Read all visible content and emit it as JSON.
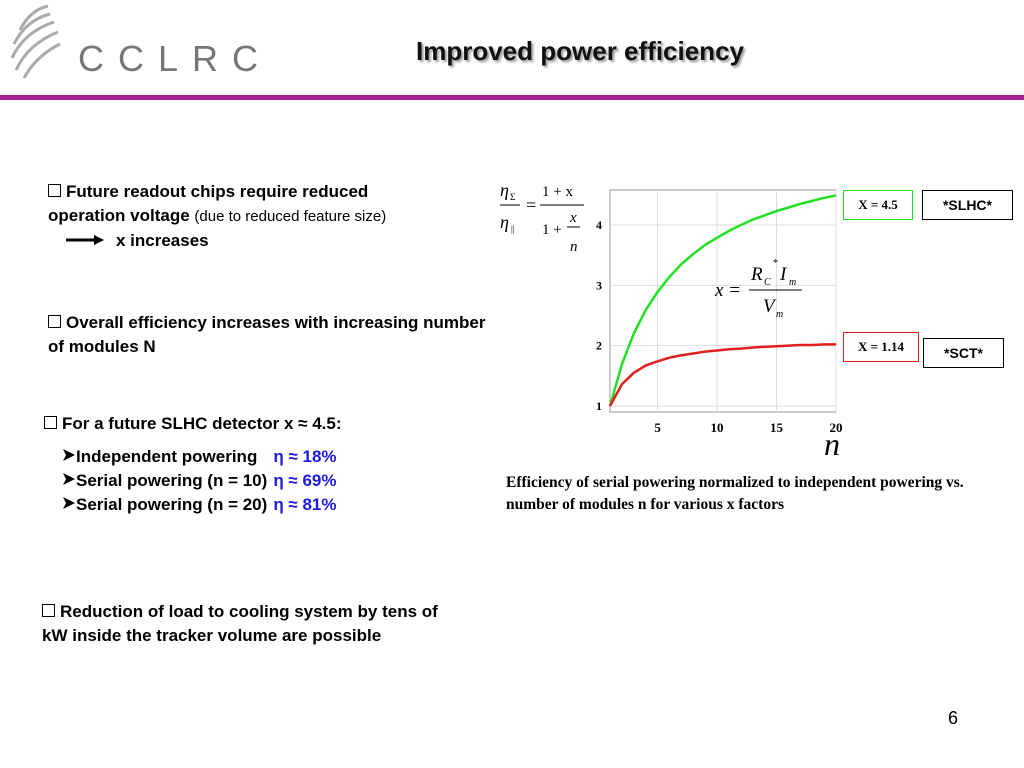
{
  "header": {
    "logo": "CCLRC",
    "title": "Improved power efficiency"
  },
  "bullets": [
    {
      "text": "Future readout chips require reduced operation voltage",
      "note": "(due to reduced feature size)",
      "result": "x increases"
    },
    {
      "text": "Overall efficiency increases with increasing number of modules N"
    },
    {
      "text": "For a future SLHC detector x ≈ 4.5:",
      "items": [
        {
          "label": "Independent powering",
          "value": "η ≈ 18%"
        },
        {
          "label": "Serial powering (n = 10)",
          "value": "η ≈ 69%"
        },
        {
          "label": "Serial powering (n = 20)",
          "value": "η ≈ 81%"
        }
      ]
    },
    {
      "text": "Reduction of load to cooling system by tens of kW inside the tracker volume are possible"
    }
  ],
  "chart_data": {
    "type": "line",
    "x": [
      1,
      2,
      3,
      4,
      5,
      6,
      7,
      8,
      9,
      10,
      11,
      12,
      13,
      14,
      15,
      16,
      17,
      18,
      19,
      20
    ],
    "series": [
      {
        "name": "X = 4.5",
        "tag": "*SLHC*",
        "color": "#22e022",
        "values": [
          1.0,
          1.69,
          2.2,
          2.59,
          2.89,
          3.14,
          3.35,
          3.52,
          3.67,
          3.79,
          3.9,
          4.0,
          4.09,
          4.16,
          4.23,
          4.29,
          4.35,
          4.4,
          4.45,
          4.49
        ]
      },
      {
        "name": "X = 1.14",
        "tag": "*SCT*",
        "color": "#e02020",
        "values": [
          1.0,
          1.36,
          1.55,
          1.67,
          1.74,
          1.8,
          1.84,
          1.87,
          1.9,
          1.92,
          1.94,
          1.95,
          1.97,
          1.98,
          1.99,
          2.0,
          2.01,
          2.01,
          2.02,
          2.02
        ]
      }
    ],
    "xlabel": "n",
    "xlim": [
      1,
      20
    ],
    "ylim": [
      0.9,
      4.58
    ],
    "xticks": [
      5,
      10,
      15,
      20
    ],
    "yticks": [
      1,
      2,
      3,
      4
    ],
    "grid": true,
    "formula_eff": {
      "top_l": "η",
      "top_l_sub": "Σ",
      "bot_l": "η",
      "bot_l_sub": "||",
      "eq": "=",
      "num": "1 + x",
      "den": "1 +",
      "den_num": "x",
      "den_den": "n"
    },
    "formula_x": {
      "lhs": "x =",
      "r": "R",
      "r_sub": "C",
      "r_sup": "*",
      "i": "I",
      "i_sub": "m",
      "v": "V",
      "v_sub": "m"
    }
  },
  "caption": "Efficiency of serial powering normalized to independent powering vs. number of modules n for various x factors",
  "page_number": "6"
}
